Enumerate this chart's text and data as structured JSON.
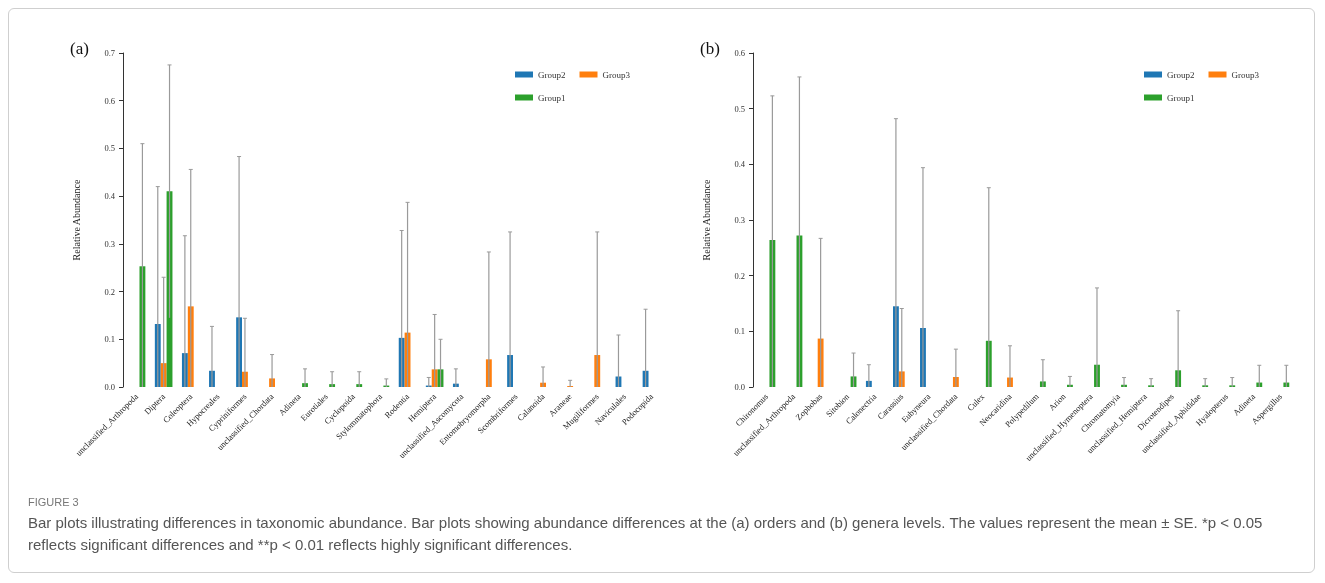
{
  "chart_data": [
    {
      "type": "bar",
      "title": "(a)",
      "ylabel": "Relative Abundance",
      "categories": [
        "unclassified_Arthropoda",
        "Diptera",
        "Coleoptera",
        "Hypocreales",
        "Cypriniformes",
        "unclassified_Chordata",
        "Adineta",
        "Eurotiales",
        "Cyclopoida",
        "Stylommatophora",
        "Rodentia",
        "Hemiptera",
        "unclassified_Ascomycota",
        "Entomobryomorpha",
        "Scombriformes",
        "Calanoida",
        "Araneae",
        "Mugiliformes",
        "Naviculales",
        "Podocopida"
      ],
      "ylim": [
        0,
        0.7
      ],
      "yticks": [
        {
          "value": 0,
          "label": "0.0"
        },
        0.1,
        0.2,
        0.3,
        0.4,
        0.5,
        0.6,
        0.7
      ],
      "grid": false,
      "legend": "top right",
      "series": [
        {
          "name": "Group2",
          "color": "#1f77b4",
          "values": [
            0,
            0.132,
            0.071,
            0.034,
            0.146,
            0,
            0,
            0,
            0,
            0,
            0.103,
            0.003,
            0.007,
            0,
            0.067,
            0,
            0,
            0,
            0.022,
            0.034
          ],
          "errors": [
            null,
            [
              0,
              0.42
            ],
            [
              0,
              0.317
            ],
            [
              0,
              0.127
            ],
            [
              0,
              0.483
            ],
            null,
            null,
            null,
            null,
            null,
            [
              0,
              0.328
            ],
            [
              0,
              0.02
            ],
            [
              0,
              0.038
            ],
            null,
            [
              0,
              0.325
            ],
            null,
            null,
            null,
            [
              0,
              0.109
            ],
            [
              0,
              0.163
            ]
          ]
        },
        {
          "name": "Group3",
          "color": "#ff7f0e",
          "values": [
            0,
            0.05,
            0.169,
            0,
            0.032,
            0.018,
            0,
            0,
            0,
            0,
            0.114,
            0.037,
            0,
            0.058,
            0,
            0.009,
            0.002,
            0.067,
            0,
            0
          ],
          "errors": [
            null,
            [
              0,
              0.23
            ],
            [
              0,
              0.456
            ],
            null,
            [
              0,
              0.144
            ],
            [
              0,
              0.068
            ],
            null,
            null,
            null,
            null,
            [
              0,
              0.387
            ],
            [
              0,
              0.152
            ],
            null,
            [
              0,
              0.283
            ],
            null,
            [
              0,
              0.042
            ],
            [
              0,
              0.014
            ],
            [
              0,
              0.325
            ],
            null,
            null
          ]
        },
        {
          "name": "Group1",
          "color": "#2ca02c",
          "values": [
            0.253,
            0.41,
            0,
            0,
            0,
            0,
            0.008,
            0.006,
            0.006,
            0.003,
            0,
            0.037,
            0,
            0,
            0,
            0,
            0,
            0,
            0,
            0
          ],
          "errors": [
            [
              0,
              0.51
            ],
            [
              0.145,
              0.675
            ],
            null,
            null,
            null,
            null,
            [
              0,
              0.038
            ],
            [
              0,
              0.032
            ],
            [
              0,
              0.032
            ],
            [
              0,
              0.017
            ],
            null,
            [
              0,
              0.1
            ],
            null,
            null,
            null,
            null,
            null,
            null,
            null,
            null
          ]
        }
      ],
      "annotations": [
        "FIGURE 3",
        "Bar plots illustrating differences in taxonomic abundance. Bar plots showing abundance differences at the (a) orders and (b) genera levels. The values represent the mean ± SE. *p < 0.05 reflects significant differences and **p < 0.01 reflects highly significant differences."
      ]
    },
    {
      "type": "bar",
      "title": "(b)",
      "ylabel": "Relative Abundance",
      "categories": [
        "Chironomus",
        "unclassified_Arthropoda",
        "Zophobas",
        "Sitobion",
        "Calonectria",
        "Carassius",
        "Eubyneura",
        "unclassified_Chordata",
        "Culex",
        "Neocaridina",
        "Polypedilum",
        "Arion",
        "unclassified_Hymenoptera",
        "Chromatomyia",
        "unclassified_Hemiptera",
        "Dicrotendipes",
        "unclassified_Aphididae",
        "Hyalopterus",
        "Adineta",
        "Aspergillus"
      ],
      "ylim": [
        0,
        0.6
      ],
      "yticks": [
        {
          "value": 0,
          "label": "0.0"
        },
        0.1,
        0.2,
        0.3,
        0.4,
        0.5,
        0.6
      ],
      "grid": false,
      "legend": "top right",
      "series": [
        {
          "name": "Group2",
          "color": "#1f77b4",
          "values": [
            0,
            0,
            0,
            0,
            0.011,
            0.145,
            0.106,
            0,
            0,
            0,
            0,
            0,
            0,
            0,
            0,
            0,
            0,
            0,
            0,
            0
          ],
          "errors": [
            null,
            null,
            null,
            null,
            [
              0,
              0.04
            ],
            [
              0,
              0.482
            ],
            [
              0,
              0.394
            ],
            null,
            null,
            null,
            null,
            null,
            null,
            null,
            null,
            null,
            null,
            null,
            null,
            null
          ]
        },
        {
          "name": "Group3",
          "color": "#ff7f0e",
          "values": [
            0,
            0,
            0.087,
            0,
            0,
            0.028,
            0,
            0.018,
            0,
            0.017,
            0,
            0,
            0,
            0,
            0,
            0,
            0,
            0,
            0,
            0
          ],
          "errors": [
            null,
            null,
            [
              0,
              0.267
            ],
            null,
            null,
            [
              0,
              0.141
            ],
            null,
            [
              0,
              0.068
            ],
            null,
            [
              0,
              0.074
            ],
            null,
            null,
            null,
            null,
            null,
            null,
            null,
            null,
            null,
            null
          ]
        },
        {
          "name": "Group1",
          "color": "#2ca02c",
          "values": [
            0.264,
            0.272,
            0,
            0.019,
            0,
            0,
            0,
            0,
            0.083,
            0,
            0.01,
            0.004,
            0.04,
            0.004,
            0.003,
            0.03,
            0.003,
            0.003,
            0.008,
            0.008
          ],
          "errors": [
            [
              0,
              0.523
            ],
            [
              0,
              0.557
            ],
            null,
            [
              0,
              0.061
            ],
            null,
            null,
            null,
            null,
            [
              0,
              0.358
            ],
            null,
            [
              0,
              0.049
            ],
            [
              0,
              0.019
            ],
            [
              0,
              0.178
            ],
            [
              0,
              0.017
            ],
            [
              0,
              0.015
            ],
            [
              0,
              0.137
            ],
            [
              0,
              0.015
            ],
            [
              0,
              0.017
            ],
            [
              0,
              0.039
            ],
            [
              0,
              0.039
            ]
          ]
        }
      ]
    }
  ]
}
